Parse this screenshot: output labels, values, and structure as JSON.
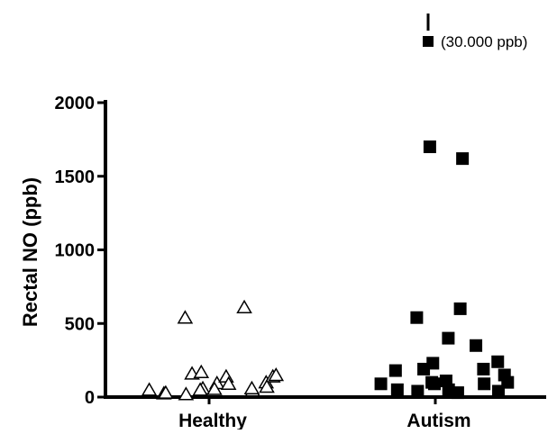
{
  "chart_data": {
    "type": "scatter",
    "title": "",
    "xlabel": "",
    "ylabel": "Rectal NO (ppb)",
    "ylim": [
      0,
      2000
    ],
    "yticks": [
      "0",
      "500",
      "1000",
      "1500",
      "2000"
    ],
    "ytick_values": [
      0,
      500,
      1000,
      1500,
      2000
    ],
    "categories": [
      "Healthy",
      "Autism"
    ],
    "grid": false,
    "legend": "none",
    "marker_color": "#000000",
    "series": [
      {
        "category": "Healthy",
        "marker": "open-triangle",
        "values": [
          100,
          50,
          95,
          160,
          60,
          140,
          25,
          20,
          55,
          140,
          45,
          30,
          150,
          60,
          170,
          70,
          50,
          90,
          540,
          610
        ]
      },
      {
        "category": "Autism",
        "marker": "filled-square",
        "values": [
          240,
          90,
          50,
          190,
          90,
          30,
          180,
          40,
          110,
          150,
          90,
          50,
          100,
          190,
          230,
          40,
          100,
          600,
          540,
          350,
          400,
          1620,
          1700
        ]
      }
    ],
    "outlier": {
      "category": "Autism",
      "value": 30000,
      "label": "(30.000 ppb)"
    }
  }
}
